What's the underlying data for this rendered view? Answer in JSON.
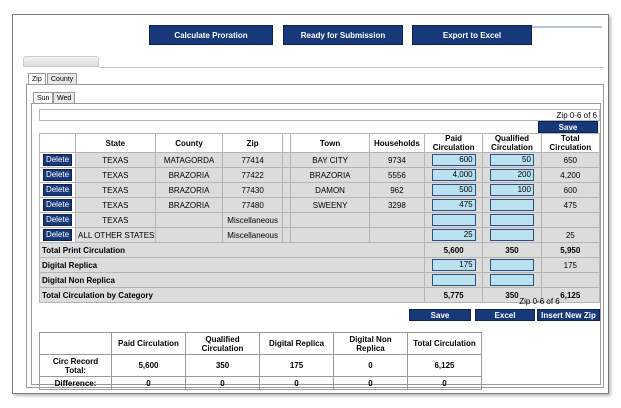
{
  "toolbar": {
    "calculate_label": "Calculate Proration",
    "ready_label": "Ready for Submission",
    "export_label": "Export to Excel"
  },
  "tabs": {
    "zip": "Zip",
    "county": "County",
    "sun": "Sun",
    "wed": "Wed"
  },
  "pager_top": "Zip 0-6 of 6",
  "pager_bottom": "Zip 0-6 of 6",
  "save_label": "Save",
  "columns": {
    "state": "State",
    "county": "County",
    "zip": "Zip",
    "town": "Town",
    "households": "Households",
    "paid": "Paid Circulation",
    "qualified": "Qualified Circulation",
    "total": "Total Circulation"
  },
  "delete_label": "Delete",
  "rows": [
    {
      "state": "TEXAS",
      "county": "MATAGORDA",
      "zip": "77414",
      "town": "BAY CITY",
      "households": "9734",
      "paid": "600",
      "qualified": "50",
      "total": "650"
    },
    {
      "state": "TEXAS",
      "county": "BRAZORIA",
      "zip": "77422",
      "town": "BRAZORIA",
      "households": "5556",
      "paid": "4,000",
      "qualified": "200",
      "total": "4,200"
    },
    {
      "state": "TEXAS",
      "county": "BRAZORIA",
      "zip": "77430",
      "town": "DAMON",
      "households": "962",
      "paid": "500",
      "qualified": "100",
      "total": "600"
    },
    {
      "state": "TEXAS",
      "county": "BRAZORIA",
      "zip": "77480",
      "town": "SWEENY",
      "households": "3298",
      "paid": "475",
      "qualified": "",
      "total": "475"
    },
    {
      "state": "TEXAS",
      "county": "",
      "zip": "Miscellaneous",
      "town": "",
      "households": "",
      "paid": "",
      "qualified": "",
      "total": ""
    },
    {
      "state": "ALL OTHER STATES",
      "county": "",
      "zip": "Miscellaneous",
      "town": "",
      "households": "",
      "paid": "25",
      "qualified": "",
      "total": "25"
    }
  ],
  "totals": {
    "print": {
      "label": "Total Print Circulation",
      "paid": "5,600",
      "qualified": "350",
      "total": "5,950"
    },
    "replica": {
      "label": "Digital Replica",
      "paid": "175",
      "qualified": "",
      "total": "175"
    },
    "nonreplica": {
      "label": "Digital Non Replica",
      "paid": "",
      "qualified": "",
      "total": ""
    },
    "category": {
      "label": "Total Circulation by Category",
      "paid": "5,775",
      "qualified": "350",
      "total": "6,125"
    }
  },
  "bottom_buttons": {
    "save": "Save",
    "excel": "Excel",
    "insert": "Insert New Zip"
  },
  "summary": {
    "headers": [
      "Paid Circulation",
      "Qualified Circulation",
      "Digital Replica",
      "Digital Non Replica",
      "Total Circulation"
    ],
    "record_label": "Circ Record Total:",
    "record_values": [
      "5,600",
      "350",
      "175",
      "0",
      "6,125"
    ],
    "diff_label": "Difference:",
    "diff_values": [
      "0",
      "0",
      "0",
      "0",
      "0"
    ]
  }
}
